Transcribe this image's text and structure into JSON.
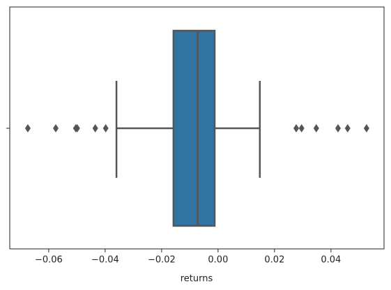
{
  "chart_data": {
    "type": "box",
    "orientation": "horizontal",
    "xlabel": "returns",
    "color": "#3274a1",
    "edge_color": "#555555",
    "xlim": [
      -0.0738,
      0.0588
    ],
    "xticks": [
      {
        "value": -0.06,
        "label": "−0.06"
      },
      {
        "value": -0.04,
        "label": "−0.04"
      },
      {
        "value": -0.02,
        "label": "−0.02"
      },
      {
        "value": 0,
        "label": "0.00"
      },
      0.02,
      0.04
    ],
    "box": {
      "whislo": -0.036,
      "q1": -0.0158,
      "med": -0.0072,
      "q3": -0.0012,
      "whishi": 0.0148,
      "fliers": [
        -0.0674,
        -0.0575,
        -0.0504,
        -0.0499,
        -0.0435,
        -0.0398,
        0.0277,
        0.0296,
        0.0348,
        0.0425,
        0.0459,
        0.0526
      ]
    }
  }
}
